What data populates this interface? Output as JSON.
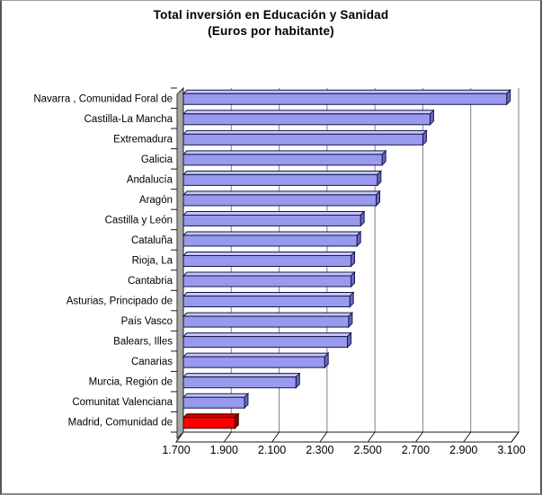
{
  "frame": {
    "background": "#FFFFFF",
    "border_color": "#58585A"
  },
  "chart_data": {
    "type": "bar",
    "orientation": "horizontal",
    "style": "3d",
    "title": "Total inversión en Educación y Sanidad",
    "subtitle": "(Euros por habitante)",
    "categories": [
      "Navarra , Comunidad Foral de",
      "Castilla-La Mancha",
      "Extremadura",
      "Galicia",
      "Andalucía",
      "Aragón",
      "Castilla y León",
      "Cataluña",
      "Rioja, La",
      "Cantabria",
      "Asturias, Principado de",
      "País Vasco",
      "Balears, Illes",
      "Canarias",
      "Murcia, Región de",
      "Comunitat Valenciana",
      "Madrid, Comunidad de"
    ],
    "values": [
      3050,
      2730,
      2700,
      2530,
      2510,
      2505,
      2440,
      2425,
      2400,
      2400,
      2395,
      2390,
      2385,
      2290,
      2170,
      1955,
      1915
    ],
    "xlim": [
      1700,
      3100
    ],
    "x_tick_step": 200,
    "x_ticks": [
      {
        "value": 1700,
        "label": "1.700"
      },
      {
        "value": 1900,
        "label": "1.900"
      },
      {
        "value": 2100,
        "label": "2.100"
      },
      {
        "value": 2300,
        "label": "2.300"
      },
      {
        "value": 2500,
        "label": "2.500"
      },
      {
        "value": 2700,
        "label": "2.700"
      },
      {
        "value": 2900,
        "label": "2.900"
      },
      {
        "value": 3100,
        "label": "3.100"
      }
    ],
    "grid": true,
    "legend": "none",
    "highlight_category": "Madrid, Comunidad de",
    "colors": {
      "bar_face": "#9999EE",
      "bar_top": "#C6C6FA",
      "bar_side": "#6868BE",
      "bar_border": "#16164E",
      "highlight_face": "#FF0000",
      "highlight_top": "#D40000",
      "highlight_side": "#8F0000",
      "highlight_border": "#2E0000",
      "gridline": "#808080",
      "wall": "#A6A6A6",
      "wall_border": "#333333",
      "axis": "#1A1A1A",
      "text": "#000000"
    }
  }
}
